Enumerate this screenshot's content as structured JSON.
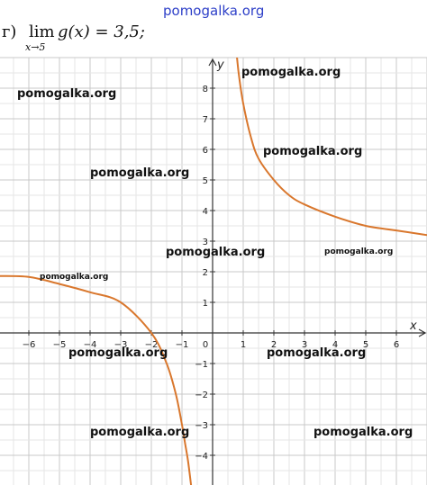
{
  "header": {
    "site": "pomogalka.org"
  },
  "problem": {
    "prefix": "г)",
    "operator": "lim",
    "subscript": "x→5",
    "expression": "g(x) = 3,5;"
  },
  "watermark_text": "pomogalka.org",
  "chart_data": {
    "type": "line",
    "title": "",
    "xlabel": "x",
    "ylabel": "y",
    "xlim": [
      -7,
      7
    ],
    "ylim": [
      -4.8,
      9
    ],
    "grid": true,
    "x_ticks": [
      "−6",
      "−5",
      "−4",
      "−3",
      "−2",
      "−1",
      "0",
      "1",
      "2",
      "3",
      "4",
      "5",
      "6"
    ],
    "y_ticks": [
      "−4",
      "−3",
      "−2",
      "−1",
      "1",
      "2",
      "3",
      "4",
      "5",
      "6",
      "7",
      "8"
    ],
    "series": [
      {
        "color": "#d9772d",
        "x": [
          -7,
          -6,
          -5,
          -4,
          -3,
          -2,
          -1.5,
          -1.2,
          -1,
          -0.9,
          -0.8,
          -0.7
        ],
        "y": [
          1.86,
          1.83,
          1.6,
          1.33,
          1.0,
          0.0,
          -1.0,
          -2.0,
          -3.0,
          -3.6,
          -4.2,
          -5.0
        ]
      },
      {
        "color": "#d9772d",
        "x": [
          0.75,
          0.85,
          1.0,
          1.25,
          1.5,
          2,
          2.5,
          3,
          4,
          5,
          6,
          7
        ],
        "y": [
          9.5,
          8.5,
          7.5,
          6.4,
          5.7,
          5.0,
          4.5,
          4.2,
          3.8,
          3.5,
          3.35,
          3.2
        ]
      }
    ]
  }
}
